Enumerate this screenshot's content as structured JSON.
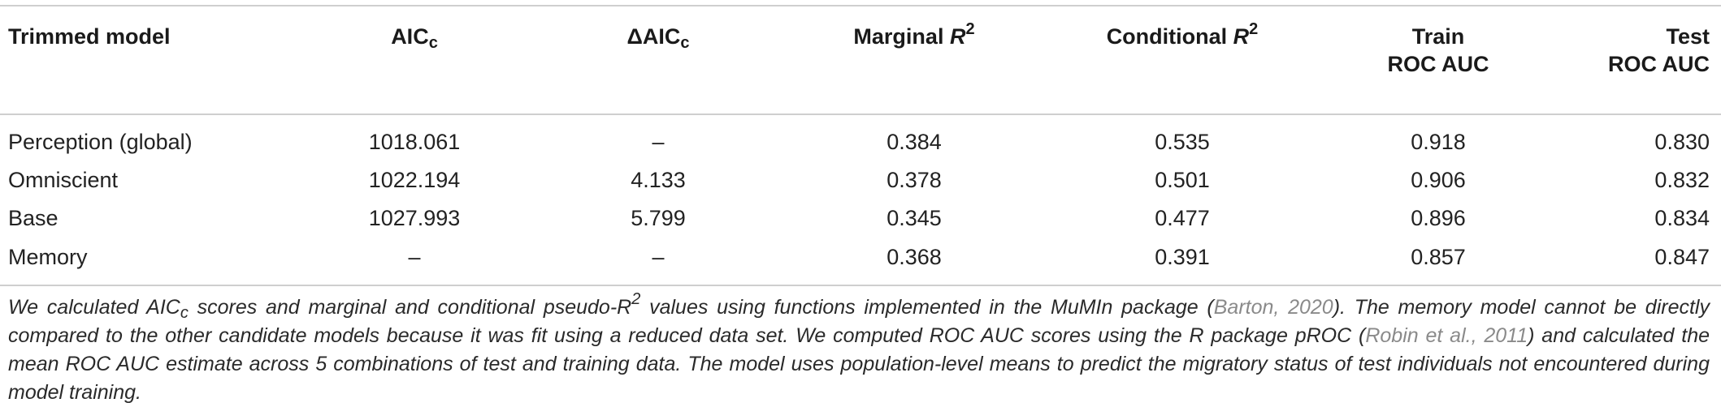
{
  "table": {
    "headers": {
      "model": "Trimmed model",
      "aicc_base": "AIC",
      "aicc_sub": "c",
      "daicc_base": "ΔAIC",
      "daicc_sub": "c",
      "marginal_base": "Marginal ",
      "marginal_var": "R",
      "marginal_sup": "2",
      "conditional_base": "Conditional ",
      "conditional_var": "R",
      "conditional_sup": "2",
      "train_line1": "Train",
      "train_line2": "ROC AUC",
      "test_line1": "Test",
      "test_line2": "ROC AUC"
    },
    "rows": [
      {
        "model": "Perception (global)",
        "aicc": "1018.061",
        "daicc": "–",
        "marginal": "0.384",
        "conditional": "0.535",
        "train": "0.918",
        "test": "0.830"
      },
      {
        "model": "Omniscient",
        "aicc": "1022.194",
        "daicc": "4.133",
        "marginal": "0.378",
        "conditional": "0.501",
        "train": "0.906",
        "test": "0.832"
      },
      {
        "model": "Base",
        "aicc": "1027.993",
        "daicc": "5.799",
        "marginal": "0.345",
        "conditional": "0.477",
        "train": "0.896",
        "test": "0.834"
      },
      {
        "model": "Memory",
        "aicc": "–",
        "daicc": "–",
        "marginal": "0.368",
        "conditional": "0.391",
        "train": "0.857",
        "test": "0.847"
      }
    ]
  },
  "footnote": {
    "p1": "We calculated AIC",
    "p1_sub": "c",
    "p2": " scores and marginal and conditional pseudo-R",
    "p2_sup": "2",
    "p3": " values using functions implemented in the MuMIn package (",
    "cite1": "Barton, 2020",
    "p4": "). The memory model cannot be directly compared to the other candidate models because it was fit using a reduced data set. We computed ROC AUC scores using the R package pROC (",
    "cite2": "Robin et al., 2011",
    "p5": ") and calculated the mean ROC AUC estimate across 5 combinations of test and training data. The model uses population-level means to predict the migratory status of test individuals not encountered during model training."
  }
}
